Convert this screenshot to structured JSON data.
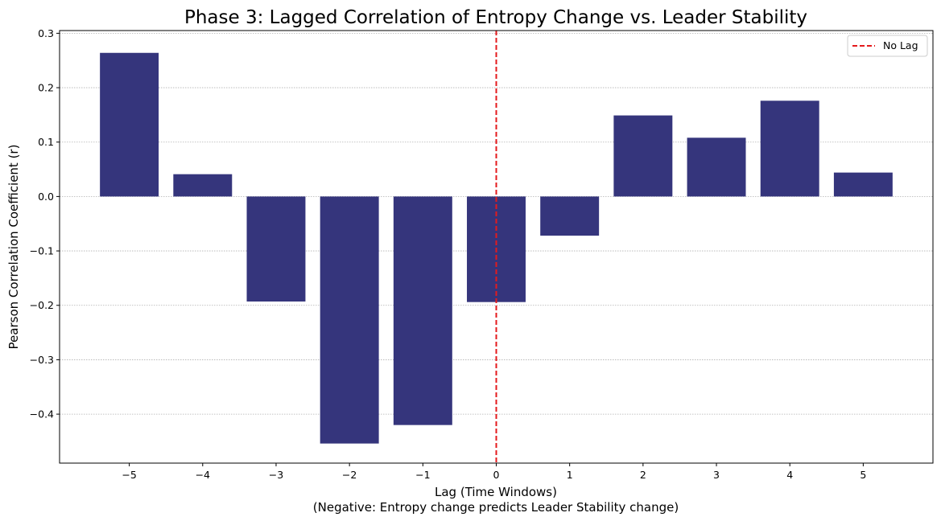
{
  "chart_data": {
    "type": "bar",
    "title": "Phase 3: Lagged Correlation of Entropy Change vs. Leader Stability",
    "xlabel": "Lag (Time Windows)",
    "xlabel_note": "(Negative: Entropy change predicts Leader Stability change)",
    "ylabel": "Pearson Correlation Coefficient (r)",
    "x": [
      -5,
      -4,
      -3,
      -2,
      -1,
      0,
      1,
      2,
      3,
      4,
      5
    ],
    "x_tick_labels": [
      "−5",
      "−4",
      "−3",
      "−2",
      "−1",
      "0",
      "1",
      "2",
      "3",
      "4",
      "5"
    ],
    "values": [
      0.264,
      0.041,
      -0.193,
      -0.454,
      -0.42,
      -0.194,
      -0.072,
      0.149,
      0.108,
      0.176,
      0.044
    ],
    "y_ticks": [
      -0.4,
      -0.3,
      -0.2,
      -0.1,
      0.0,
      0.1,
      0.2,
      0.3
    ],
    "y_tick_labels": [
      "−0.4",
      "−0.3",
      "−0.2",
      "−0.1",
      "0.0",
      "0.1",
      "0.2",
      "0.3"
    ],
    "xlim": [
      -5.95,
      5.95
    ],
    "ylim": [
      -0.49,
      0.305
    ],
    "grid": "y-dotted",
    "bar_color": "#35357c",
    "reference_line": {
      "x": 0,
      "label": "No Lag",
      "color": "#e41a1c",
      "style": "dashed"
    },
    "legend": {
      "position": "top-right",
      "entries": [
        "No Lag"
      ]
    }
  }
}
